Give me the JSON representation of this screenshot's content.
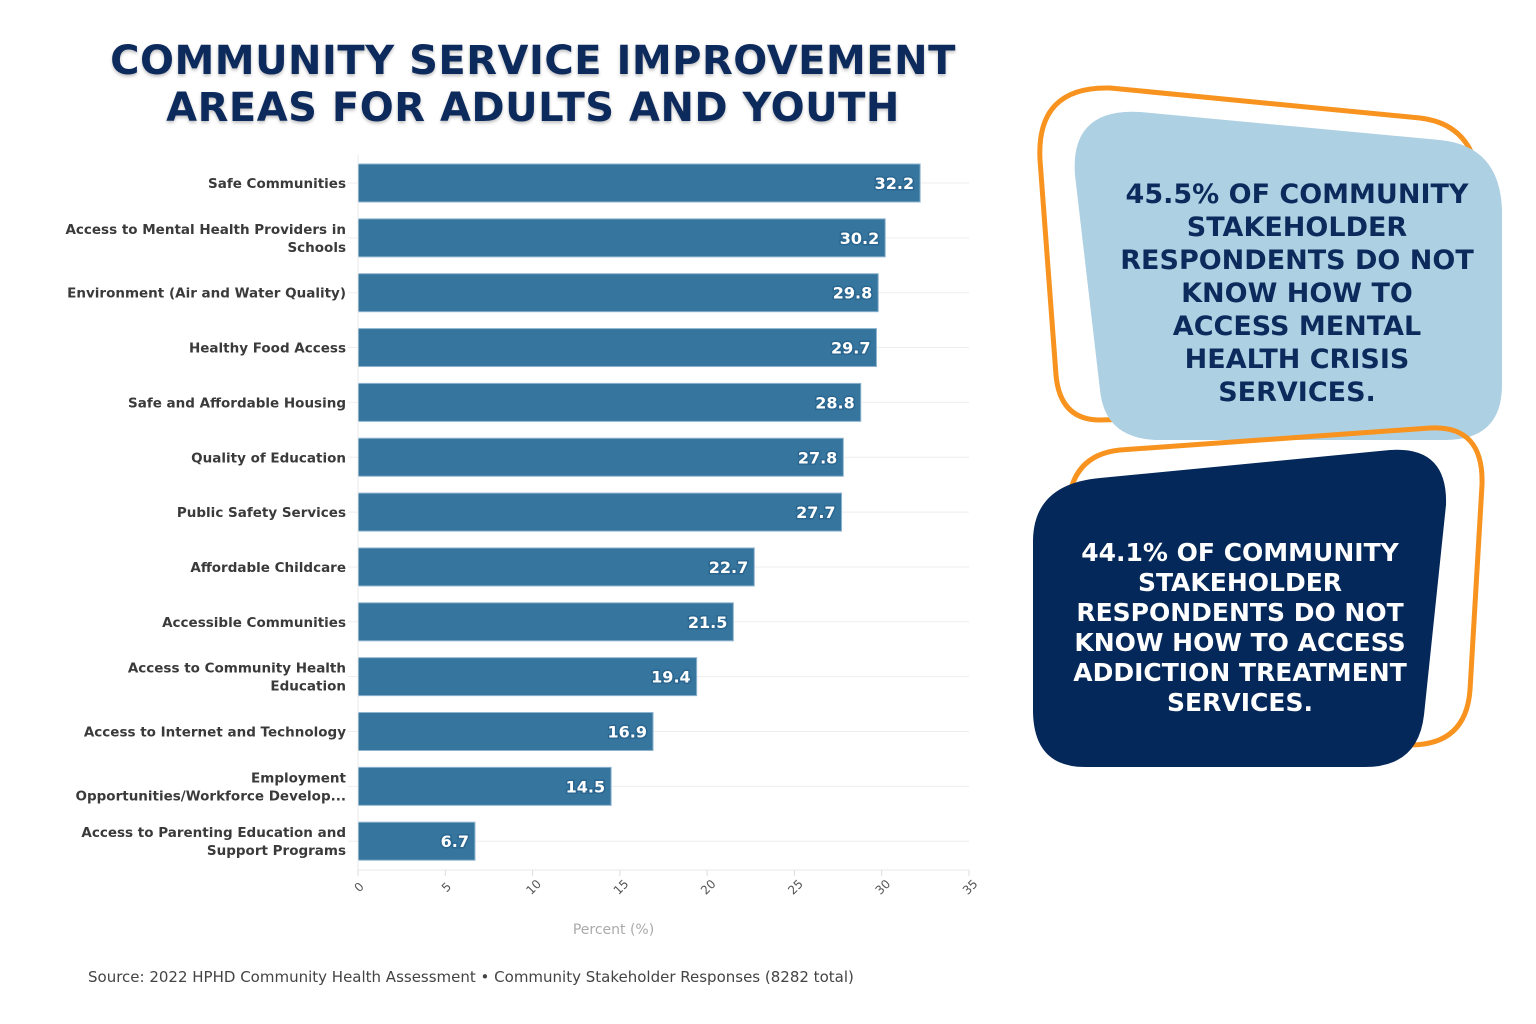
{
  "title": {
    "lines": [
      "COMMUNITY SERVICE IMPROVEMENT",
      "AREAS FOR ADULTS AND YOUTH"
    ]
  },
  "colors": {
    "title": "#0d2a5c",
    "bar": "#36769e",
    "bar_label": "#ffffff",
    "callout_1_bg": "#aed0e3",
    "callout_2_bg": "#05285a",
    "callout_outline": "#f7931e",
    "gridline": "#eeeeee"
  },
  "chart_data": {
    "type": "bar",
    "orientation": "horizontal",
    "title": "COMMUNITY SERVICE IMPROVEMENT AREAS FOR ADULTS AND YOUTH",
    "categories": [
      [
        "Safe Communities"
      ],
      [
        "Access to Mental Health Providers in",
        "Schools"
      ],
      [
        "Environment (Air and Water Quality)"
      ],
      [
        "Healthy Food Access"
      ],
      [
        "Safe and Affordable Housing"
      ],
      [
        "Quality of Education"
      ],
      [
        "Public Safety Services"
      ],
      [
        "Affordable Childcare"
      ],
      [
        "Accessible Communities"
      ],
      [
        "Access to Community Health",
        "Education"
      ],
      [
        "Access to Internet and Technology"
      ],
      [
        "Employment",
        "Opportunities/Workforce Develop..."
      ],
      [
        "Access to Parenting Education and",
        "Support Programs"
      ]
    ],
    "values": [
      32.2,
      30.2,
      29.8,
      29.7,
      28.8,
      27.8,
      27.7,
      22.7,
      21.5,
      19.4,
      16.9,
      14.5,
      6.7
    ],
    "value_labels": [
      "32.2",
      "30.2",
      "29.8",
      "29.7",
      "28.8",
      "27.8",
      "27.7",
      "22.7",
      "21.5",
      "19.4",
      "16.9",
      "14.5",
      "6.7"
    ],
    "xlabel": "Percent (%)",
    "ylabel": "",
    "xlim": [
      0,
      35
    ],
    "xticks": [
      0,
      5,
      10,
      15,
      20,
      25,
      30,
      35
    ],
    "grid": true,
    "legend": "none"
  },
  "callouts": [
    {
      "lines": [
        "45.5% OF COMMUNITY",
        "STAKEHOLDER",
        "RESPONDENTS DO NOT",
        "KNOW HOW TO",
        "ACCESS MENTAL",
        "HEALTH CRISIS",
        "SERVICES."
      ]
    },
    {
      "lines": [
        "44.1% OF COMMUNITY",
        "STAKEHOLDER",
        "RESPONDENTS DO NOT",
        "KNOW HOW TO ACCESS",
        "ADDICTION TREATMENT",
        "SERVICES."
      ]
    }
  ],
  "source": "Source: 2022 HPHD Community Health Assessment • Community Stakeholder Responses (8282 total)"
}
